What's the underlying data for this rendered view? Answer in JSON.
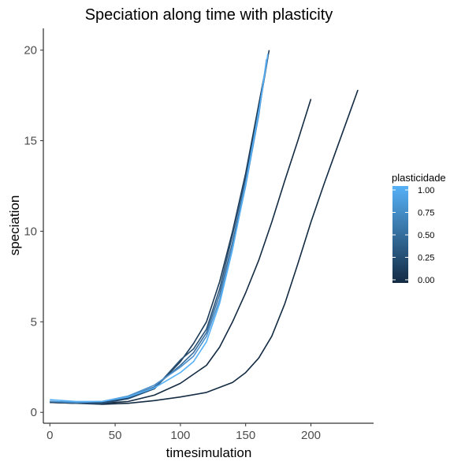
{
  "chart_data": {
    "type": "line",
    "title": "Speciation along time with plasticity",
    "xlabel": "timesimulation",
    "ylabel": "speciation",
    "xlim": [
      -5,
      248
    ],
    "ylim": [
      -0.6,
      21.2
    ],
    "xticks": [
      0,
      50,
      100,
      150,
      200
    ],
    "yticks": [
      0,
      5,
      10,
      15,
      20
    ],
    "grid": false,
    "legend": {
      "title": "plasticidade",
      "position": "right",
      "ticks": [
        "0.00",
        "0.25",
        "0.50",
        "0.75",
        "1.00"
      ],
      "low_color": "#132B43",
      "high_color": "#56B1F7"
    },
    "series": [
      {
        "plasticidade": 0.0,
        "color": "#132B43",
        "x": [
          0,
          20,
          40,
          60,
          80,
          100,
          120,
          140,
          150,
          160,
          170,
          180,
          190,
          200,
          210,
          220,
          230,
          236
        ],
        "y": [
          0.55,
          0.5,
          0.45,
          0.5,
          0.65,
          0.85,
          1.1,
          1.65,
          2.2,
          3.0,
          4.2,
          6.0,
          8.2,
          10.5,
          12.6,
          14.6,
          16.6,
          17.8
        ]
      },
      {
        "plasticidade": 0.05,
        "color": "#132B43",
        "x": [
          0,
          20,
          40,
          60,
          80,
          100,
          110,
          120,
          130,
          140,
          150,
          160,
          170,
          180,
          190,
          200
        ],
        "y": [
          0.55,
          0.5,
          0.5,
          0.6,
          0.95,
          1.6,
          2.1,
          2.6,
          3.6,
          5.0,
          6.6,
          8.4,
          10.5,
          12.8,
          15.0,
          17.3
        ]
      },
      {
        "plasticidade": 0.1,
        "color": "#1B3A58",
        "x": [
          0,
          20,
          40,
          60,
          80,
          100,
          110,
          120,
          130,
          140,
          150,
          160,
          168
        ],
        "y": [
          0.6,
          0.5,
          0.55,
          0.8,
          1.3,
          2.8,
          3.8,
          5.0,
          7.2,
          10.0,
          13.2,
          17.0,
          20.0
        ]
      },
      {
        "plasticidade": 0.3,
        "color": "#2A5277",
        "x": [
          0,
          20,
          40,
          60,
          80,
          100,
          110,
          120,
          130,
          140,
          150,
          160,
          167
        ],
        "y": [
          0.6,
          0.5,
          0.5,
          0.75,
          1.3,
          2.9,
          3.5,
          4.6,
          6.8,
          9.8,
          13.0,
          16.6,
          19.6
        ]
      },
      {
        "plasticidade": 0.55,
        "color": "#386E9E",
        "x": [
          0,
          20,
          40,
          60,
          80,
          100,
          110,
          120,
          130,
          140,
          150,
          160,
          166
        ],
        "y": [
          0.6,
          0.55,
          0.6,
          0.85,
          1.4,
          2.6,
          3.3,
          4.4,
          6.5,
          9.4,
          12.7,
          16.5,
          19.4
        ]
      },
      {
        "plasticidade": 0.8,
        "color": "#4A8FCB",
        "x": [
          0,
          20,
          40,
          60,
          80,
          100,
          110,
          120,
          130,
          140,
          150,
          160,
          166
        ],
        "y": [
          0.6,
          0.55,
          0.6,
          0.9,
          1.5,
          2.5,
          3.1,
          4.2,
          6.2,
          9.1,
          12.5,
          16.4,
          19.5
        ]
      },
      {
        "plasticidade": 1.0,
        "color": "#56B1F7",
        "x": [
          0,
          20,
          40,
          60,
          80,
          100,
          110,
          120,
          130,
          140,
          150,
          160,
          167
        ],
        "y": [
          0.7,
          0.6,
          0.6,
          0.85,
          1.35,
          2.2,
          2.8,
          3.9,
          6.0,
          9.0,
          12.6,
          16.6,
          19.8
        ]
      }
    ]
  }
}
